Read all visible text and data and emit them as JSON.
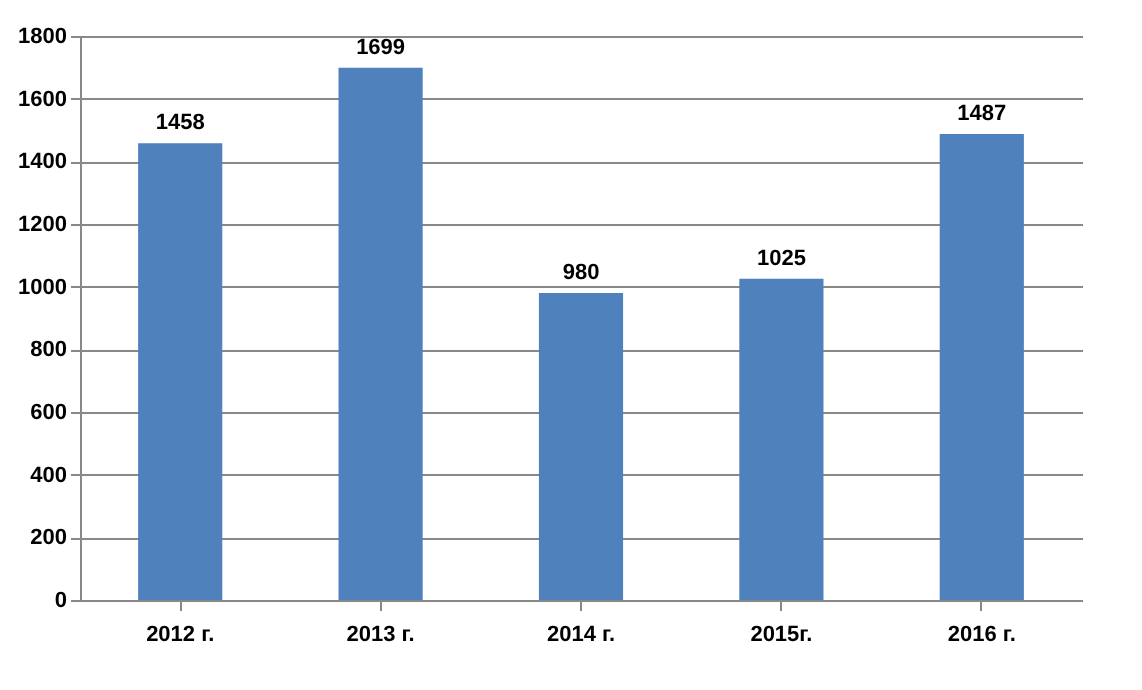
{
  "chart_data": {
    "type": "bar",
    "categories": [
      "2012 г.",
      "2013 г.",
      "2014 г.",
      "2015г.",
      "2016 г."
    ],
    "values": [
      1458,
      1699,
      980,
      1025,
      1487
    ],
    "color": "#4f81bd",
    "ylim": [
      0,
      1800
    ],
    "yticks": [
      0,
      200,
      400,
      600,
      800,
      1000,
      1200,
      1400,
      1600,
      1800
    ],
    "grid": "y",
    "data_labels": true
  }
}
